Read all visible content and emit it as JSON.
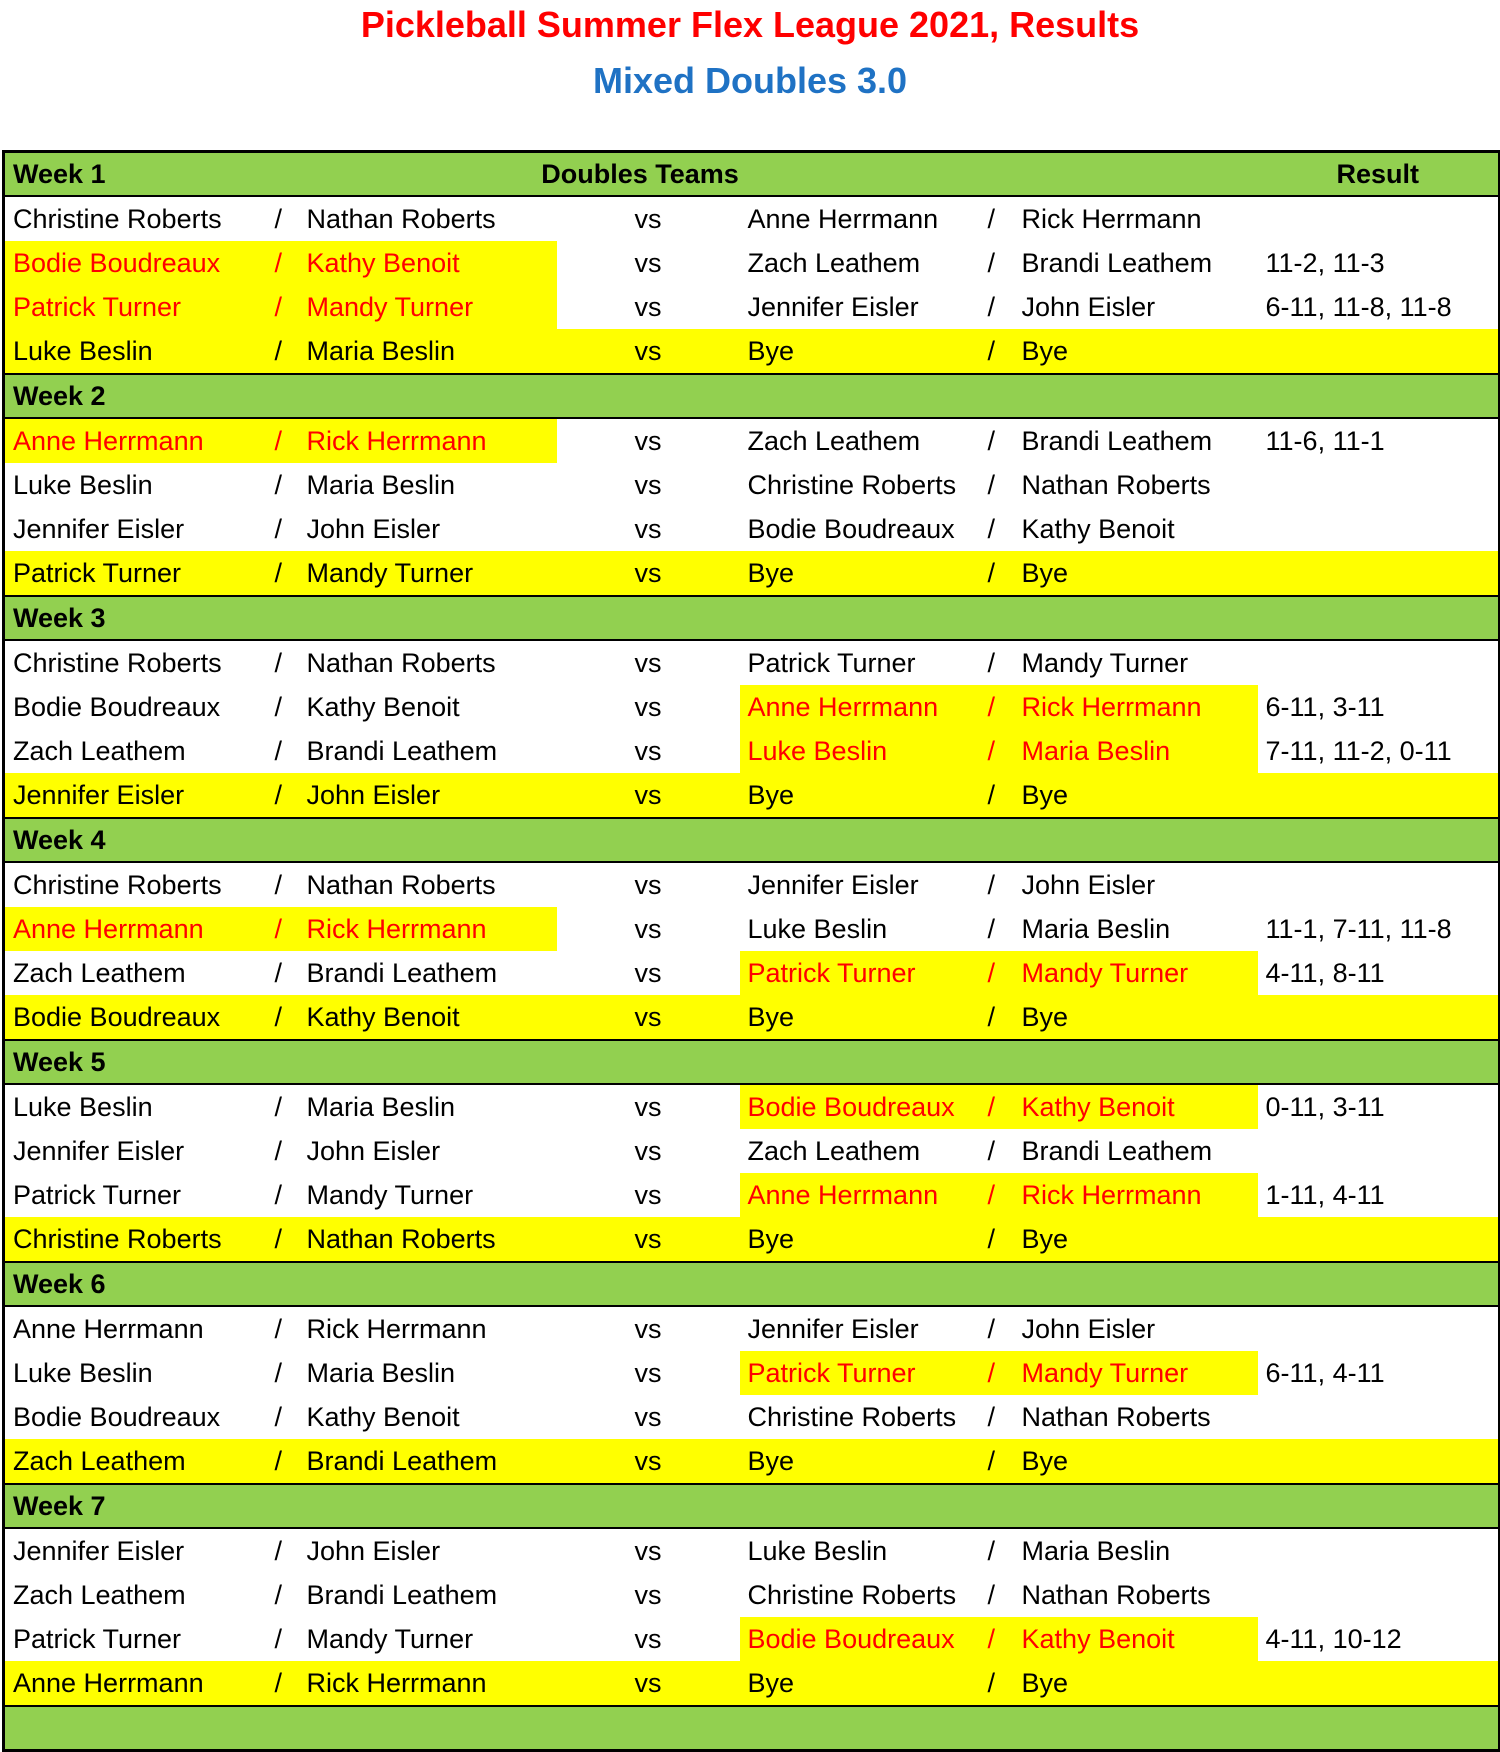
{
  "title": "Pickleball Summer Flex League 2021, Results",
  "subtitle": "Mixed Doubles 3.0",
  "header": {
    "teams": "Doubles Teams",
    "result": "Result"
  },
  "versus": "vs",
  "separator": "/",
  "weeks": [
    {
      "label": "Week 1",
      "matches": [
        {
          "team1": [
            "Christine Roberts",
            "Nathan Roberts"
          ],
          "team2": [
            "Anne Herrmann",
            "Rick Herrmann"
          ]
        },
        {
          "team1": [
            "Bodie Boudreaux",
            "Kathy Benoit"
          ],
          "team2": [
            "Zach Leathem",
            "Brandi Leathem"
          ],
          "result": "11-2, 11-3",
          "winner": 1
        },
        {
          "team1": [
            "Patrick Turner",
            "Mandy Turner"
          ],
          "team2": [
            "Jennifer Eisler",
            "John Eisler"
          ],
          "result": "6-11, 11-8, 11-8",
          "winner": 1
        },
        {
          "team1": [
            "Luke Beslin",
            "Maria Beslin"
          ],
          "team2": [
            "Bye",
            "Bye"
          ],
          "bye": true
        }
      ]
    },
    {
      "label": "Week 2",
      "matches": [
        {
          "team1": [
            "Anne Herrmann",
            "Rick Herrmann"
          ],
          "team2": [
            "Zach Leathem",
            "Brandi Leathem"
          ],
          "result": "11-6, 11-1",
          "winner": 1
        },
        {
          "team1": [
            "Luke Beslin",
            "Maria Beslin"
          ],
          "team2": [
            "Christine Roberts",
            "Nathan Roberts"
          ]
        },
        {
          "team1": [
            "Jennifer Eisler",
            "John Eisler"
          ],
          "team2": [
            "Bodie Boudreaux",
            "Kathy Benoit"
          ]
        },
        {
          "team1": [
            "Patrick Turner",
            "Mandy Turner"
          ],
          "team2": [
            "Bye",
            "Bye"
          ],
          "bye": true
        }
      ]
    },
    {
      "label": "Week 3",
      "matches": [
        {
          "team1": [
            "Christine Roberts",
            "Nathan Roberts"
          ],
          "team2": [
            "Patrick Turner",
            "Mandy Turner"
          ]
        },
        {
          "team1": [
            "Bodie Boudreaux",
            "Kathy Benoit"
          ],
          "team2": [
            "Anne Herrmann",
            "Rick Herrmann"
          ],
          "result": "6-11, 3-11",
          "winner": 2
        },
        {
          "team1": [
            "Zach Leathem",
            "Brandi Leathem"
          ],
          "team2": [
            "Luke Beslin",
            "Maria Beslin"
          ],
          "result": "7-11, 11-2, 0-11",
          "winner": 2
        },
        {
          "team1": [
            "Jennifer Eisler",
            "John Eisler"
          ],
          "team2": [
            "Bye",
            "Bye"
          ],
          "bye": true
        }
      ]
    },
    {
      "label": "Week 4",
      "matches": [
        {
          "team1": [
            "Christine Roberts",
            "Nathan Roberts"
          ],
          "team2": [
            "Jennifer Eisler",
            "John Eisler"
          ]
        },
        {
          "team1": [
            "Anne Herrmann",
            "Rick Herrmann"
          ],
          "team2": [
            "Luke Beslin",
            "Maria Beslin"
          ],
          "result": "11-1, 7-11, 11-8",
          "winner": 1
        },
        {
          "team1": [
            "Zach Leathem",
            "Brandi Leathem"
          ],
          "team2": [
            "Patrick Turner",
            "Mandy Turner"
          ],
          "result": "4-11, 8-11",
          "winner": 2
        },
        {
          "team1": [
            "Bodie Boudreaux",
            "Kathy Benoit"
          ],
          "team2": [
            "Bye",
            "Bye"
          ],
          "bye": true
        }
      ]
    },
    {
      "label": "Week 5",
      "matches": [
        {
          "team1": [
            "Luke Beslin",
            "Maria Beslin"
          ],
          "team2": [
            "Bodie Boudreaux",
            "Kathy Benoit"
          ],
          "result": "0-11, 3-11",
          "winner": 2
        },
        {
          "team1": [
            "Jennifer Eisler",
            "John Eisler"
          ],
          "team2": [
            "Zach Leathem",
            "Brandi Leathem"
          ]
        },
        {
          "team1": [
            "Patrick Turner",
            "Mandy Turner"
          ],
          "team2": [
            "Anne Herrmann",
            "Rick Herrmann"
          ],
          "result": "1-11, 4-11",
          "winner": 2
        },
        {
          "team1": [
            "Christine Roberts",
            "Nathan Roberts"
          ],
          "team2": [
            "Bye",
            "Bye"
          ],
          "bye": true
        }
      ]
    },
    {
      "label": "Week 6",
      "matches": [
        {
          "team1": [
            "Anne Herrmann",
            "Rick Herrmann"
          ],
          "team2": [
            "Jennifer Eisler",
            "John Eisler"
          ]
        },
        {
          "team1": [
            "Luke Beslin",
            "Maria Beslin"
          ],
          "team2": [
            "Patrick Turner",
            "Mandy Turner"
          ],
          "result": "6-11, 4-11",
          "winner": 2
        },
        {
          "team1": [
            "Bodie Boudreaux",
            "Kathy Benoit"
          ],
          "team2": [
            "Christine Roberts",
            "Nathan Roberts"
          ]
        },
        {
          "team1": [
            "Zach Leathem",
            "Brandi Leathem"
          ],
          "team2": [
            "Bye",
            "Bye"
          ],
          "bye": true
        }
      ]
    },
    {
      "label": "Week 7",
      "matches": [
        {
          "team1": [
            "Jennifer Eisler",
            "John Eisler"
          ],
          "team2": [
            "Luke Beslin",
            "Maria Beslin"
          ]
        },
        {
          "team1": [
            "Zach Leathem",
            "Brandi Leathem"
          ],
          "team2": [
            "Christine Roberts",
            "Nathan Roberts"
          ]
        },
        {
          "team1": [
            "Patrick Turner",
            "Mandy Turner"
          ],
          "team2": [
            "Bodie Boudreaux",
            "Kathy Benoit"
          ],
          "result": "4-11, 10-12",
          "winner": 2
        },
        {
          "team1": [
            "Anne Herrmann",
            "Rick Herrmann"
          ],
          "team2": [
            "Bye",
            "Bye"
          ],
          "bye": true
        }
      ]
    }
  ]
}
